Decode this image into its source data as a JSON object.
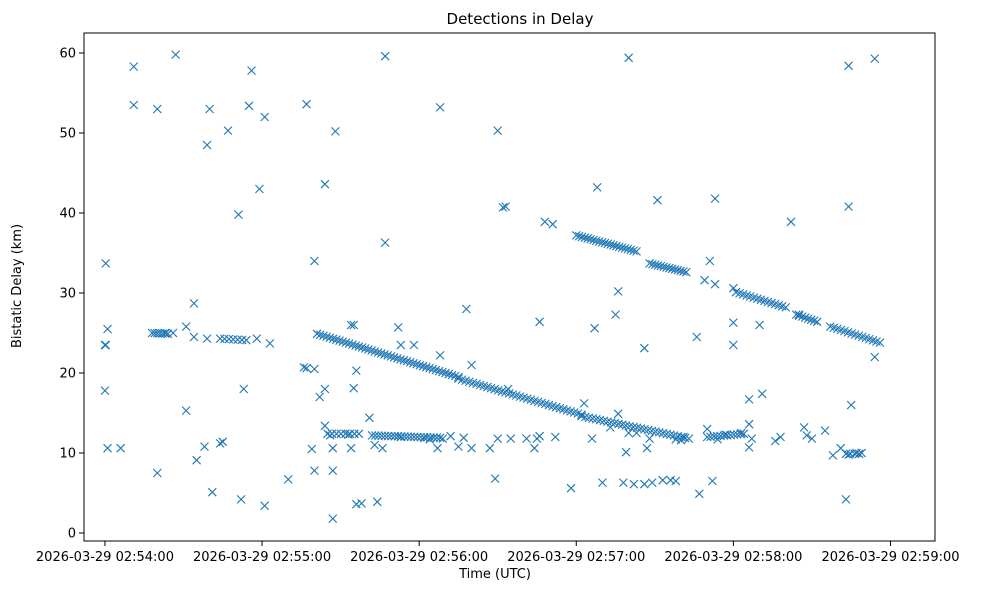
{
  "chart_data": {
    "type": "scatter",
    "title": "Detections in Delay",
    "xlabel": "Time (UTC)",
    "ylabel": "Bistatic Delay (km)",
    "x_unit": "seconds after 2026-03-29 02:54:00",
    "xlim": [
      -8,
      317
    ],
    "ylim": [
      -1,
      62.5
    ],
    "grid": false,
    "marker": "x",
    "color": "#1f77b4",
    "x_ticks": [
      {
        "value": 0,
        "label": "2026-03-29 02:54:00"
      },
      {
        "value": 60,
        "label": "2026-03-29 02:55:00"
      },
      {
        "value": 120,
        "label": "2026-03-29 02:56:00"
      },
      {
        "value": 180,
        "label": "2026-03-29 02:57:00"
      },
      {
        "value": 240,
        "label": "2026-03-29 02:58:00"
      },
      {
        "value": 300,
        "label": "2026-03-29 02:59:00"
      }
    ],
    "y_ticks": [
      0,
      10,
      20,
      30,
      40,
      50,
      60
    ],
    "series": [
      {
        "points": [
          [
            0,
            23.5
          ],
          [
            0.3,
            23.5
          ],
          [
            0,
            17.8
          ],
          [
            0.3,
            33.7
          ],
          [
            1,
            25.5
          ],
          [
            1,
            10.6
          ],
          [
            6,
            10.6
          ],
          [
            11,
            58.3
          ],
          [
            11,
            53.5
          ],
          [
            20,
            53
          ],
          [
            20,
            7.5
          ],
          [
            27,
            59.8
          ],
          [
            31,
            25.8
          ],
          [
            31,
            15.3
          ],
          [
            34,
            28.7
          ],
          [
            34,
            24.5
          ],
          [
            35,
            9.1
          ],
          [
            38,
            10.8
          ],
          [
            39,
            24.3
          ],
          [
            39,
            48.5
          ],
          [
            40,
            53
          ],
          [
            41,
            5.1
          ],
          [
            44,
            11.2
          ],
          [
            45,
            11.4
          ],
          [
            47,
            50.3
          ],
          [
            51,
            39.8
          ],
          [
            52,
            4.2
          ],
          [
            53,
            18
          ],
          [
            55,
            53.4
          ],
          [
            56,
            57.8
          ],
          [
            58,
            24.3
          ],
          [
            59,
            43
          ],
          [
            61,
            3.4
          ],
          [
            61,
            52
          ],
          [
            63,
            23.7
          ],
          [
            70,
            6.7
          ],
          [
            76,
            20.7
          ],
          [
            77,
            20.6
          ],
          [
            77,
            53.6
          ],
          [
            79,
            10.5
          ],
          [
            80,
            7.8
          ],
          [
            80,
            34
          ],
          [
            80,
            20.5
          ],
          [
            82,
            17
          ],
          [
            84,
            18
          ],
          [
            84,
            13.4
          ],
          [
            84,
            43.6
          ],
          [
            86,
            12.2
          ],
          [
            87,
            1.8
          ],
          [
            87,
            10.6
          ],
          [
            87,
            7.8
          ],
          [
            88,
            50.2
          ],
          [
            94,
            10.6
          ],
          [
            95,
            18.1
          ],
          [
            96,
            20.3
          ],
          [
            96,
            3.6
          ],
          [
            98,
            3.7
          ],
          [
            101,
            14.4
          ],
          [
            103,
            11
          ],
          [
            104,
            3.9
          ],
          [
            106,
            10.6
          ],
          [
            107,
            36.3
          ],
          [
            107,
            59.6
          ],
          [
            112,
            25.7
          ],
          [
            113,
            23.5
          ],
          [
            118,
            23.5
          ],
          [
            127,
            10.6
          ],
          [
            128,
            22.2
          ],
          [
            128,
            53.2
          ],
          [
            132,
            12.1
          ],
          [
            135,
            10.8
          ],
          [
            137,
            11.9
          ],
          [
            138,
            28
          ],
          [
            140,
            10.6
          ],
          [
            140,
            21
          ],
          [
            147,
            10.6
          ],
          [
            149,
            6.8
          ],
          [
            150,
            50.3
          ],
          [
            152,
            40.7
          ],
          [
            153,
            40.8
          ],
          [
            154,
            18
          ],
          [
            164,
            10.6
          ],
          [
            166,
            12.1
          ],
          [
            166,
            26.4
          ],
          [
            168,
            38.9
          ],
          [
            171,
            38.6
          ],
          [
            172,
            12
          ],
          [
            178,
            5.6
          ],
          [
            183,
            16.2
          ],
          [
            187,
            25.6
          ],
          [
            188,
            43.2
          ],
          [
            190,
            6.3
          ],
          [
            195,
            27.3
          ],
          [
            196,
            30.2
          ],
          [
            196,
            14.9
          ],
          [
            198,
            6.3
          ],
          [
            199,
            10.1
          ],
          [
            200,
            59.4
          ],
          [
            202,
            6.1
          ],
          [
            206,
            6.1
          ],
          [
            206,
            23.1
          ],
          [
            207,
            10.6
          ],
          [
            209,
            6.3
          ],
          [
            211,
            41.6
          ],
          [
            213,
            6.6
          ],
          [
            216,
            6.6
          ],
          [
            218,
            6.5
          ],
          [
            226,
            24.5
          ],
          [
            227,
            4.9
          ],
          [
            229,
            31.6
          ],
          [
            230,
            13
          ],
          [
            231,
            34
          ],
          [
            232,
            6.5
          ],
          [
            233,
            31.1
          ],
          [
            233,
            41.8
          ],
          [
            237,
            12.3
          ],
          [
            240,
            23.5
          ],
          [
            240,
            26.3
          ],
          [
            240,
            30.6
          ],
          [
            243,
            12.5
          ],
          [
            246,
            10.7
          ],
          [
            246,
            16.7
          ],
          [
            246,
            13.6
          ],
          [
            251,
            17.4
          ],
          [
            256,
            11.5
          ],
          [
            262,
            38.9
          ],
          [
            265,
            27.3
          ],
          [
            267,
            13.2
          ],
          [
            268,
            12.2
          ],
          [
            275,
            12.8
          ],
          [
            278,
            9.7
          ],
          [
            281,
            10.6
          ],
          [
            283,
            4.2
          ],
          [
            284,
            58.4
          ],
          [
            284,
            40.8
          ],
          [
            285,
            16
          ],
          [
            287,
            10
          ],
          [
            294,
            59.3
          ],
          [
            294,
            22
          ],
          [
            23,
            25
          ],
          [
            26,
            25
          ],
          [
            93,
            12.3
          ],
          [
            94,
            26
          ],
          [
            95,
            26
          ],
          [
            113,
            12
          ],
          [
            122,
            11.9
          ],
          [
            124,
            11.7
          ],
          [
            129,
            11.8
          ],
          [
            150,
            11.8
          ],
          [
            155,
            11.8
          ],
          [
            161,
            11.8
          ],
          [
            165,
            11.8
          ],
          [
            186,
            11.8
          ],
          [
            193,
            13.2
          ],
          [
            200,
            12.5
          ],
          [
            203,
            12.5
          ],
          [
            208,
            11.8
          ],
          [
            218,
            11.7
          ],
          [
            220,
            11.6
          ],
          [
            221,
            12
          ],
          [
            234,
            11.7
          ],
          [
            247,
            11.8
          ],
          [
            250,
            26
          ],
          [
            258,
            12
          ],
          [
            270,
            11.8
          ],
          [
            284,
            9.8
          ],
          [
            289,
            10
          ]
        ]
      },
      {
        "segments": [
          {
            "x_start": 18,
            "x_end": 24,
            "y_start": 25,
            "y_end": 24.9,
            "n": 7
          },
          {
            "x_start": 44,
            "x_end": 54,
            "y_start": 24.3,
            "y_end": 24.1,
            "n": 7
          },
          {
            "x_start": 81,
            "x_end": 135,
            "y_start": 24.9,
            "y_end": 19.5,
            "n": 45
          },
          {
            "x_start": 135,
            "x_end": 182,
            "y_start": 19.3,
            "y_end": 14.8,
            "n": 35
          },
          {
            "x_start": 182,
            "x_end": 223,
            "y_start": 14.6,
            "y_end": 11.8,
            "n": 30
          },
          {
            "x_start": 180,
            "x_end": 203,
            "y_start": 37.2,
            "y_end": 35.2,
            "n": 22
          },
          {
            "x_start": 208,
            "x_end": 222,
            "y_start": 33.7,
            "y_end": 32.6,
            "n": 14
          },
          {
            "x_start": 241,
            "x_end": 260,
            "y_start": 30.1,
            "y_end": 28.2,
            "n": 15
          },
          {
            "x_start": 264,
            "x_end": 272,
            "y_start": 27.3,
            "y_end": 26.4,
            "n": 8
          },
          {
            "x_start": 277,
            "x_end": 296,
            "y_start": 25.8,
            "y_end": 23.8,
            "n": 15
          },
          {
            "x_start": 85,
            "x_end": 97,
            "y_start": 12.4,
            "y_end": 12.4,
            "n": 8
          },
          {
            "x_start": 102,
            "x_end": 128,
            "y_start": 12.2,
            "y_end": 11.9,
            "n": 22
          },
          {
            "x_start": 230,
            "x_end": 244,
            "y_start": 12,
            "y_end": 12.4,
            "n": 12
          },
          {
            "x_start": 283,
            "x_end": 288,
            "y_start": 9.9,
            "y_end": 9.9,
            "n": 4
          }
        ]
      }
    ]
  }
}
